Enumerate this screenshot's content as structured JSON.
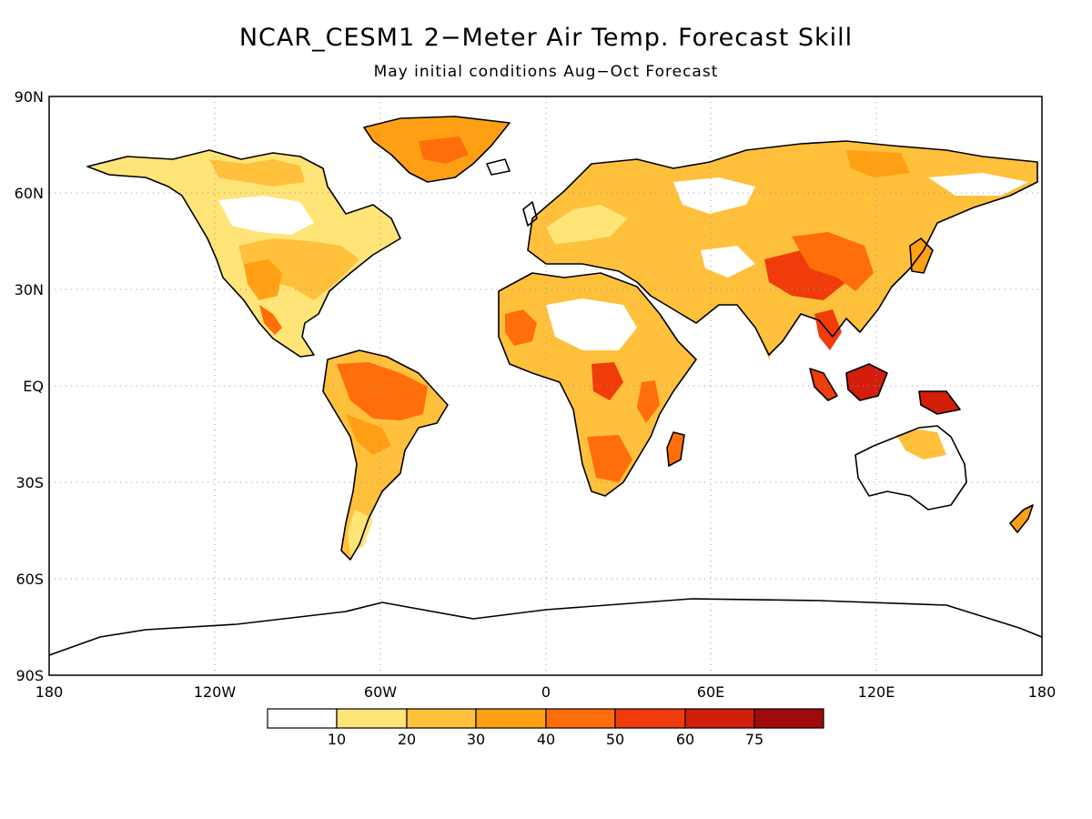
{
  "title": "NCAR_CESM1 2−Meter Air Temp. Forecast Skill",
  "subtitle": "May initial conditions  Aug−Oct Forecast",
  "map": {
    "projection": "equirectangular",
    "lon_range": [
      -180,
      180
    ],
    "lat_range": [
      -90,
      90
    ],
    "grid": "dotted",
    "lat_labels": [
      "90N",
      "60N",
      "30N",
      "EQ",
      "30S",
      "60S",
      "90S"
    ],
    "lon_labels": [
      "180",
      "120W",
      "60W",
      "0",
      "60E",
      "120E",
      "180"
    ],
    "coastline_color": "#000000"
  },
  "colorbar": {
    "labels": [
      "10",
      "20",
      "30",
      "40",
      "50",
      "60",
      "75"
    ],
    "colors": [
      "#ffffff",
      "#ffe478",
      "#ffc03c",
      "#ffa014",
      "#ff6e0a",
      "#f03c0a",
      "#d21e0a",
      "#a00a0a"
    ]
  }
}
